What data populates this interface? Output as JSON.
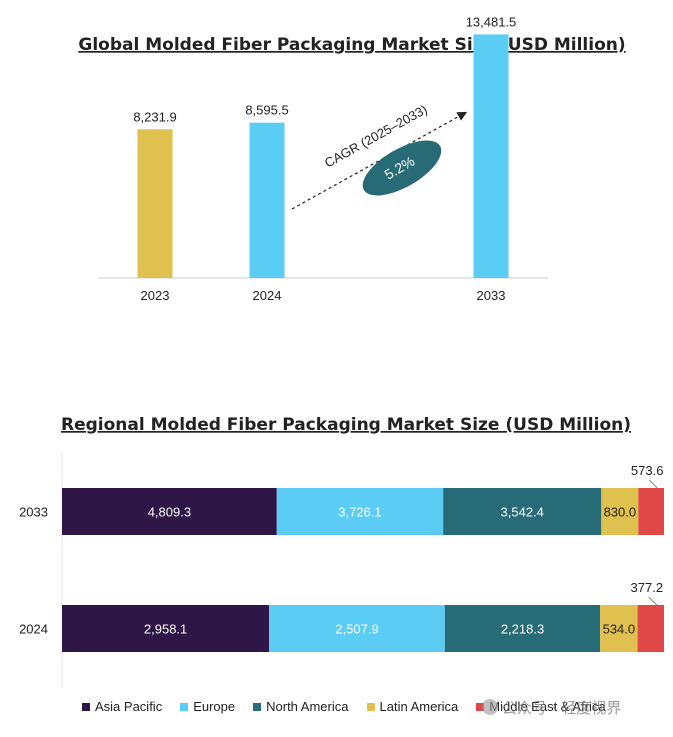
{
  "chart_data": [
    {
      "type": "bar",
      "title": "Global Molded Fiber Packaging Market Size (USD Million)",
      "categories": [
        "2023",
        "2024",
        "2033"
      ],
      "values": [
        8231.9,
        8595.5,
        13481.5
      ],
      "value_labels": [
        "8,231.9",
        "8,595.5",
        "13,481.5"
      ],
      "bar_colors": [
        "#e0c04e",
        "#5bcdf5",
        "#5bcdf5"
      ],
      "annotation": {
        "label": "CAGR (2025–2033)",
        "value": "5.2%",
        "color": "#276b76"
      },
      "ylim": [
        0,
        14500
      ],
      "grid": false
    },
    {
      "type": "bar",
      "orientation": "horizontal",
      "stacked": true,
      "title": "Regional Molded Fiber Packaging Market Size (USD Million)",
      "categories": [
        "2033",
        "2024"
      ],
      "series": [
        {
          "name": "Asia Pacific",
          "color": "#2e1646",
          "values": [
            4809.3,
            2958.1
          ],
          "labels": [
            "4,809.3",
            "2,958.1"
          ]
        },
        {
          "name": "Europe",
          "color": "#5bcdf5",
          "values": [
            3726.1,
            2507.9
          ],
          "labels": [
            "3,726.1",
            "2,507.9"
          ]
        },
        {
          "name": "North America",
          "color": "#276b76",
          "values": [
            3542.4,
            2218.3
          ],
          "labels": [
            "3,542.4",
            "2,218.3"
          ]
        },
        {
          "name": "Latin America",
          "color": "#e0c04e",
          "values": [
            830.0,
            534.0
          ],
          "labels": [
            "830.0",
            "534.0"
          ]
        },
        {
          "name": "Middle East & Africa",
          "color": "#e04848",
          "values": [
            573.6,
            377.2
          ],
          "labels": [
            "573.6",
            "377.2"
          ]
        }
      ],
      "legend_position": "bottom",
      "grid": false
    }
  ],
  "watermark": "公众号 · 轻度视界"
}
